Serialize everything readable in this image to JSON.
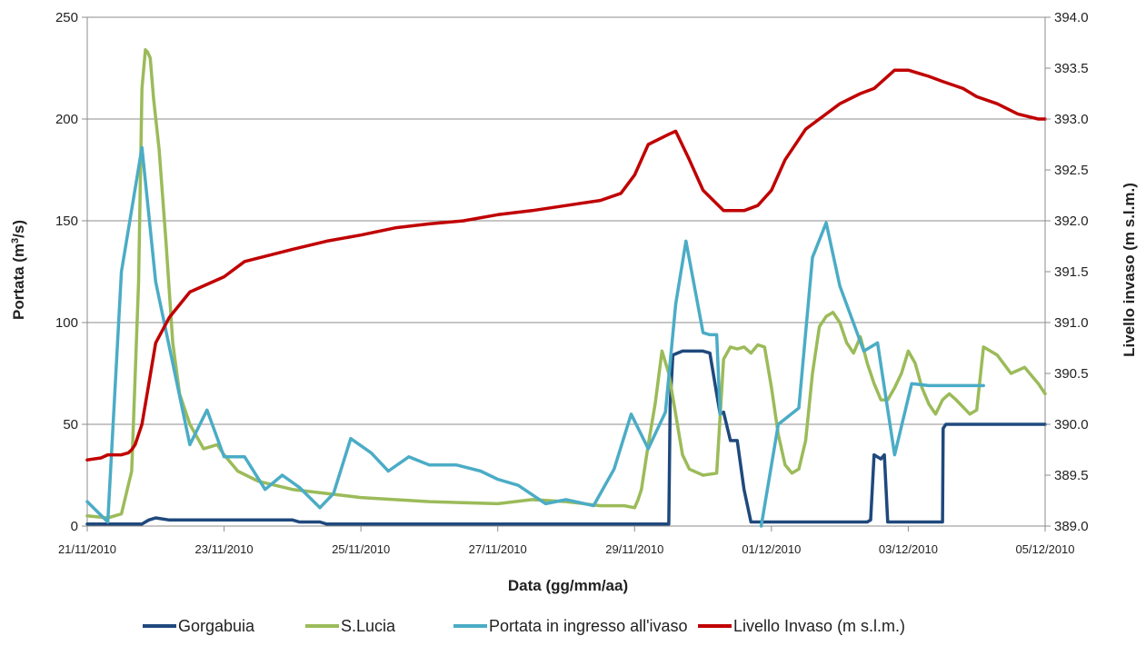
{
  "chart_data": {
    "type": "line",
    "title": "",
    "xlabel": "Data (gg/mm/aa)",
    "ylabel": "Portata (m³/s)",
    "ylabel_base": "Portata (m",
    "ylabel_sup": "3",
    "ylabel_tail": "/s)",
    "y2label": "Livello invaso (m s.l.m.)",
    "xlim": [
      0,
      14
    ],
    "ylim": [
      0,
      250
    ],
    "y2lim": [
      389.0,
      394.0
    ],
    "x_ticks": [
      {
        "x": 0,
        "label": "21/11/2010"
      },
      {
        "x": 2,
        "label": "23/11/2010"
      },
      {
        "x": 4,
        "label": "25/11/2010"
      },
      {
        "x": 6,
        "label": "27/11/2010"
      },
      {
        "x": 8,
        "label": "29/11/2010"
      },
      {
        "x": 10,
        "label": "01/12/2010"
      },
      {
        "x": 12,
        "label": "03/12/2010"
      },
      {
        "x": 14,
        "label": "05/12/2010"
      }
    ],
    "y_ticks": [
      "0",
      "50",
      "100",
      "150",
      "200",
      "250"
    ],
    "y2_ticks": [
      "389.0",
      "389.5",
      "390.0",
      "390.5",
      "391.0",
      "391.5",
      "392.0",
      "392.5",
      "393.0",
      "393.5",
      "394.0"
    ],
    "grid": true,
    "legend_position": "bottom",
    "x_unit": "days since 21/11/2010",
    "series": [
      {
        "name": "Gorgabuia",
        "color": "#1f497d",
        "axis": "left",
        "x": [
          0,
          0.5,
          0.7,
          0.8,
          0.85,
          0.9,
          1.0,
          1.2,
          1.5,
          2.0,
          2.5,
          3.0,
          3.1,
          3.4,
          3.5,
          4.0,
          5.0,
          6.0,
          7.0,
          7.5,
          8.0,
          8.4,
          8.5,
          8.52,
          8.56,
          8.7,
          9.0,
          9.1,
          9.2,
          9.25,
          9.3,
          9.4,
          9.5,
          9.6,
          9.7,
          10.0,
          10.5,
          11.0,
          11.4,
          11.45,
          11.5,
          11.6,
          11.65,
          11.7,
          12.0,
          12.5,
          12.51,
          12.55,
          13.0,
          13.5,
          13.95,
          14.0
        ],
        "values": [
          1,
          1,
          1,
          1,
          2,
          3,
          4,
          3,
          3,
          3,
          3,
          3,
          2,
          2,
          1,
          1,
          1,
          1,
          1,
          1,
          1,
          1,
          1,
          60,
          84,
          86,
          86,
          85,
          65,
          55,
          56,
          42,
          42,
          18,
          2,
          2,
          2,
          2,
          2,
          3,
          35,
          33,
          35,
          2,
          2,
          2,
          48,
          50,
          50,
          50,
          50,
          50
        ]
      },
      {
        "name": "S.Lucia",
        "color": "#9bbb59",
        "axis": "left",
        "x": [
          0,
          0.3,
          0.5,
          0.65,
          0.75,
          0.8,
          0.85,
          0.88,
          0.92,
          0.97,
          1.05,
          1.15,
          1.25,
          1.35,
          1.5,
          1.7,
          1.9,
          2.0,
          2.2,
          2.5,
          3.0,
          4.0,
          5.0,
          6.0,
          6.5,
          7.0,
          7.5,
          7.7,
          7.85,
          8.0,
          8.05,
          8.1,
          8.2,
          8.3,
          8.4,
          8.5,
          8.6,
          8.65,
          8.7,
          8.8,
          9.0,
          9.2,
          9.3,
          9.4,
          9.5,
          9.6,
          9.7,
          9.8,
          9.9,
          10.0,
          10.1,
          10.2,
          10.3,
          10.4,
          10.5,
          10.6,
          10.7,
          10.8,
          10.9,
          11.0,
          11.1,
          11.2,
          11.3,
          11.4,
          11.5,
          11.6,
          11.7,
          11.8,
          11.9,
          12.0,
          12.1,
          12.2,
          12.3,
          12.4,
          12.5,
          12.6,
          12.7,
          12.9,
          13.0,
          13.1,
          13.3,
          13.5,
          13.7,
          13.9,
          14.0
        ],
        "values": [
          5,
          4,
          6,
          27,
          120,
          215,
          234,
          233,
          230,
          210,
          185,
          140,
          90,
          65,
          50,
          38,
          40,
          35,
          27,
          22,
          18,
          14,
          12,
          11,
          13,
          12,
          10,
          10,
          10,
          9,
          13,
          18,
          40,
          60,
          86,
          75,
          55,
          45,
          35,
          28,
          25,
          26,
          82,
          88,
          87,
          88,
          85,
          89,
          88,
          68,
          45,
          30,
          26,
          28,
          42,
          75,
          98,
          103,
          105,
          100,
          90,
          85,
          93,
          80,
          70,
          62,
          62,
          68,
          75,
          86,
          80,
          68,
          60,
          55,
          62,
          65,
          62,
          55,
          57,
          88,
          84,
          75,
          78,
          70,
          65
        ],
        "note_x_scale": "x values of S.Lucia mapped roughly over 0-14"
      },
      {
        "name": "Portata in ingresso all'ivaso",
        "color": "#4bacc6",
        "axis": "left",
        "x": [
          0,
          0.3,
          0.5,
          0.8,
          1.0,
          1.5,
          1.75,
          2.0,
          2.3,
          2.6,
          2.85,
          3.1,
          3.4,
          3.6,
          3.85,
          4.15,
          4.4,
          4.7,
          5.0,
          5.4,
          5.75,
          6.0,
          6.3,
          6.7,
          7.0,
          7.4,
          7.7,
          7.95,
          8.2,
          8.45,
          8.6,
          8.75,
          9.0,
          9.1,
          9.2,
          9.25,
          9.5,
          9.75,
          9.85,
          10.1,
          10.4,
          10.6,
          10.8,
          11.0,
          11.35,
          11.55,
          11.8,
          12.05,
          12.3,
          12.6,
          12.9,
          13.1
        ],
        "values": [
          12,
          2,
          125,
          186,
          120,
          40,
          57,
          34,
          34,
          18,
          25,
          19,
          9,
          16,
          43,
          36,
          27,
          34,
          30,
          30,
          27,
          23,
          20,
          11,
          13,
          10,
          28,
          55,
          38,
          56,
          109,
          140,
          95,
          94,
          94,
          55,
          0,
          0,
          0,
          50,
          58,
          132,
          149,
          118,
          86,
          90,
          35,
          70,
          69,
          69,
          69,
          69
        ],
        "breaks": [
          [
            9.25,
            9.85
          ]
        ]
      },
      {
        "name": "Livello Invaso (m s.l.m.)",
        "color": "#c00000",
        "axis": "right",
        "x": [
          0,
          0.2,
          0.3,
          0.5,
          0.6,
          0.65,
          0.7,
          0.8,
          0.9,
          1.0,
          1.2,
          1.5,
          2.0,
          2.3,
          3.0,
          3.5,
          4.0,
          4.5,
          5.0,
          5.5,
          6.0,
          6.5,
          7.0,
          7.5,
          7.8,
          8.0,
          8.2,
          8.5,
          8.6,
          8.8,
          9.0,
          9.3,
          9.6,
          9.8,
          10.0,
          10.2,
          10.5,
          10.8,
          11.0,
          11.3,
          11.5,
          11.8,
          12.0,
          12.3,
          12.5,
          12.8,
          13.0,
          13.3,
          13.6,
          13.9,
          14.0
        ],
        "values": [
          389.65,
          389.67,
          389.7,
          389.7,
          389.72,
          389.75,
          389.8,
          390.0,
          390.4,
          390.8,
          391.05,
          391.3,
          391.45,
          391.6,
          391.72,
          391.8,
          391.86,
          391.93,
          391.97,
          392.0,
          392.06,
          392.1,
          392.15,
          392.2,
          392.27,
          392.45,
          392.75,
          392.85,
          392.88,
          392.6,
          392.3,
          392.1,
          392.1,
          392.15,
          392.3,
          392.6,
          392.9,
          393.05,
          393.15,
          393.25,
          393.3,
          393.48,
          393.48,
          393.42,
          393.37,
          393.3,
          393.22,
          393.15,
          393.05,
          393.0,
          393.0
        ]
      }
    ]
  }
}
